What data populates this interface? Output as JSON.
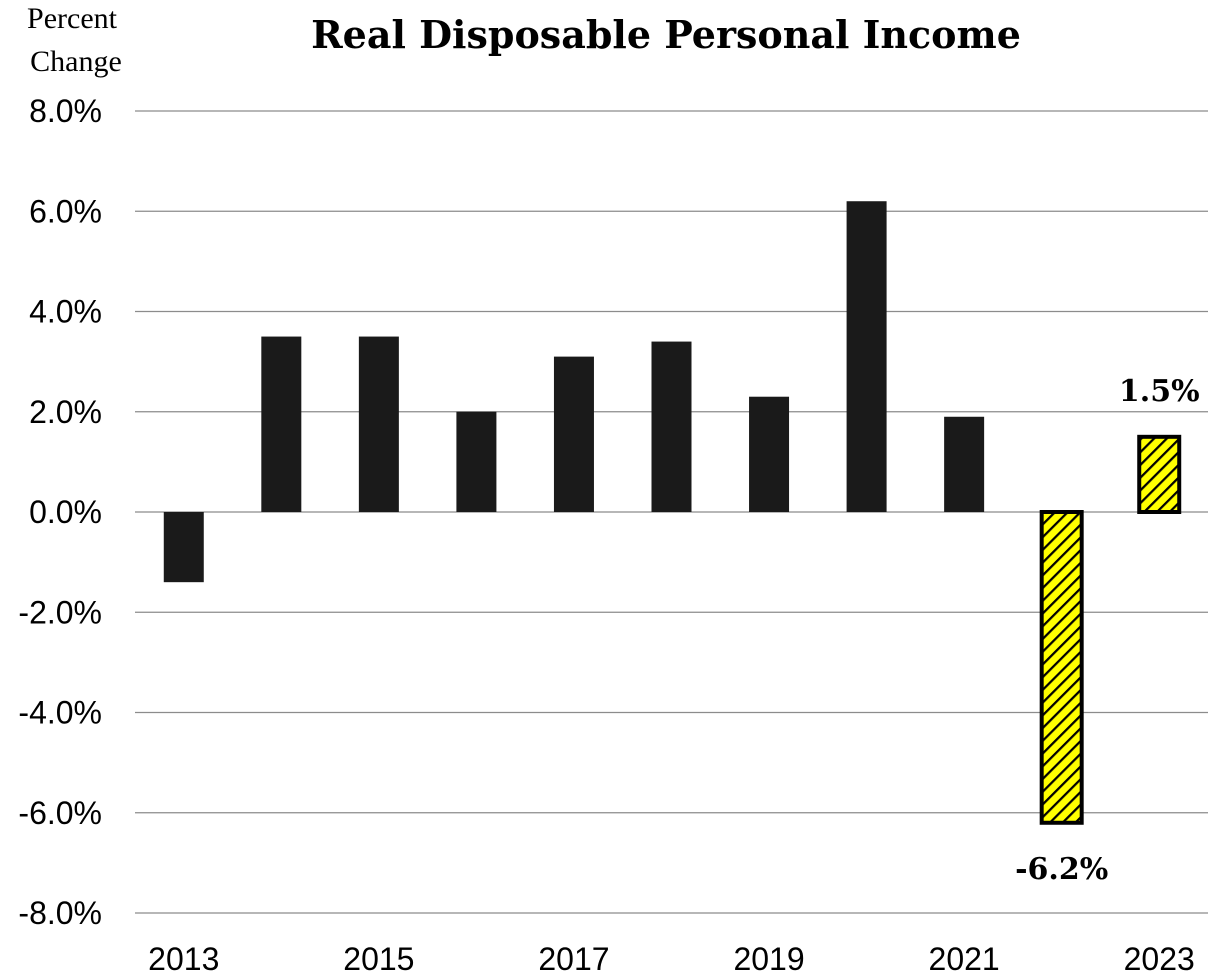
{
  "chart_data": {
    "type": "bar",
    "title": "Real Disposable Personal Income",
    "ylabel_lines": [
      "Percent",
      "Change"
    ],
    "xlabel": "",
    "categories": [
      "2013",
      "2014",
      "2015",
      "2016",
      "2017",
      "2018",
      "2019",
      "2020",
      "2021",
      "2022",
      "2023"
    ],
    "x_tick_labels": [
      "2013",
      "2015",
      "2017",
      "2019",
      "2021",
      "2023"
    ],
    "values": [
      -1.4,
      3.5,
      3.5,
      2.0,
      3.1,
      3.4,
      2.3,
      6.2,
      1.9,
      -6.2,
      1.5
    ],
    "highlighted": [
      false,
      false,
      false,
      false,
      false,
      false,
      false,
      false,
      false,
      true,
      true
    ],
    "data_labels": [
      {
        "index": 9,
        "text": "-6.2%"
      },
      {
        "index": 10,
        "text": "1.5%"
      }
    ],
    "ylim": [
      -8,
      8
    ],
    "y_ticks": [
      8,
      6,
      4,
      2,
      0,
      -2,
      -4,
      -6,
      -8
    ],
    "y_tick_format": "percent_1dp",
    "grid": true,
    "legend": false,
    "colors": {
      "bar": "#1a1a1a",
      "highlight_fill": "#ffff00",
      "highlight_hatch": "#000000",
      "grid": "#8c8c8c"
    }
  }
}
